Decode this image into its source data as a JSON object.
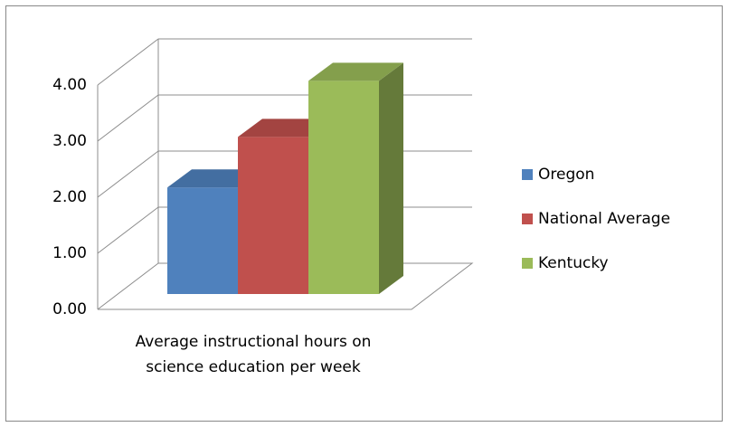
{
  "chart_data": {
    "type": "bar3d",
    "categories": [
      "Average instructional hours on science education per week"
    ],
    "series": [
      {
        "name": "Oregon",
        "color": "#4f81bd",
        "values": [
          1.9
        ]
      },
      {
        "name": "National Average",
        "color": "#c0504d",
        "values": [
          2.8
        ]
      },
      {
        "name": "Kentucky",
        "color": "#9bbb59",
        "values": [
          3.8
        ]
      }
    ],
    "ylim": [
      0,
      4
    ],
    "yticks": [
      {
        "value": 0,
        "label": "0.00"
      },
      {
        "value": 1,
        "label": "1.00"
      },
      {
        "value": 2,
        "label": "2.00"
      },
      {
        "value": 3,
        "label": "3.00"
      },
      {
        "value": 4,
        "label": "4.00"
      }
    ],
    "grid": true,
    "legend": "right"
  }
}
